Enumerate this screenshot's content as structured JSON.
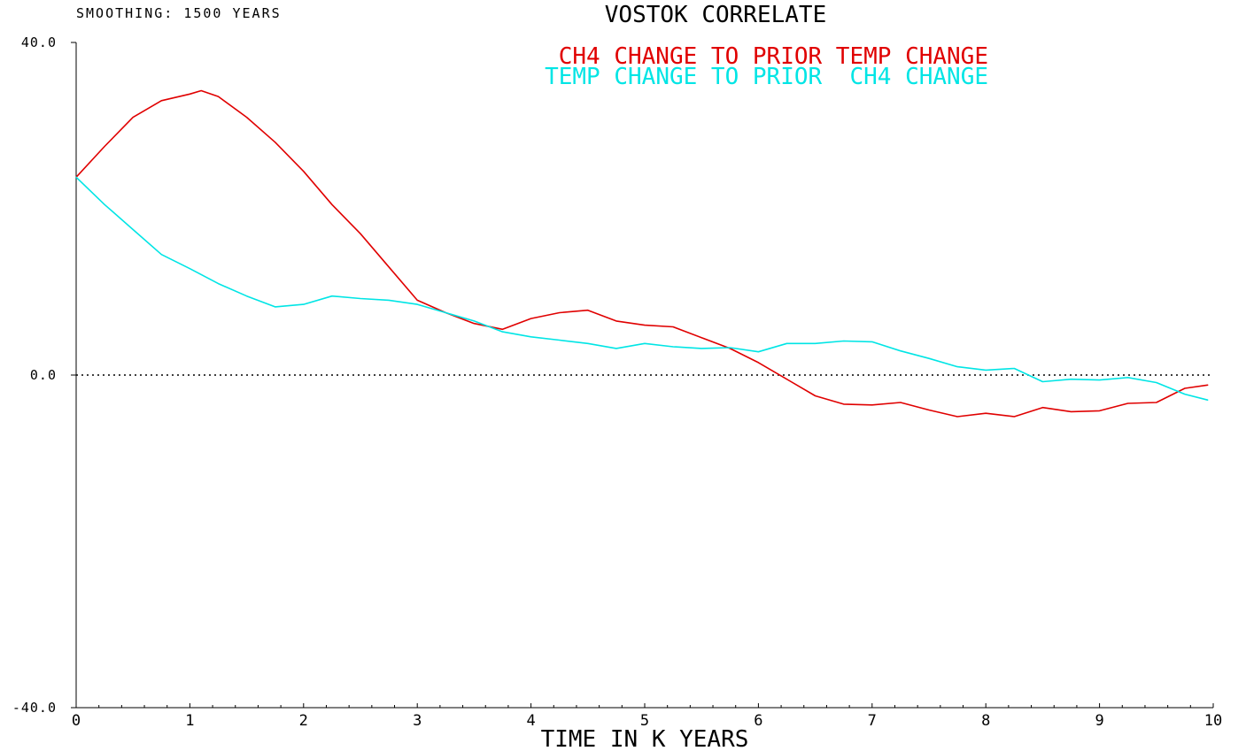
{
  "smoothing_label": "SMOOTHING: 1500 YEARS",
  "colors": {
    "background": "#ffffff",
    "axis": "#000000",
    "text": "#000000",
    "series_ch4_to_temp": "#e00000",
    "series_temp_to_ch4": "#00e5e5"
  },
  "chart_data": {
    "type": "line",
    "title": "VOSTOK CORRELATE",
    "xlabel": "TIME IN K YEARS",
    "ylabel": "",
    "xlim": [
      0,
      10
    ],
    "ylim": [
      -40,
      40
    ],
    "x_ticks": [
      "0",
      "1",
      "2",
      "3",
      "4",
      "5",
      "6",
      "7",
      "8",
      "9",
      "10"
    ],
    "y_ticks": [
      "-40.0",
      "0.0",
      "40.0"
    ],
    "zero_line": true,
    "grid": false,
    "legend_placement": "top-center",
    "series": [
      {
        "name": "CH4 CHANGE TO PRIOR TEMP CHANGE",
        "color": "#e00000",
        "points": [
          [
            0.0,
            23.8
          ],
          [
            0.25,
            27.5
          ],
          [
            0.5,
            31.0
          ],
          [
            0.75,
            33.0
          ],
          [
            1.0,
            33.8
          ],
          [
            1.1,
            34.2
          ],
          [
            1.25,
            33.5
          ],
          [
            1.5,
            31.0
          ],
          [
            1.75,
            28.0
          ],
          [
            2.0,
            24.5
          ],
          [
            2.25,
            20.5
          ],
          [
            2.5,
            17.0
          ],
          [
            2.75,
            13.0
          ],
          [
            3.0,
            9.0
          ],
          [
            3.25,
            7.5
          ],
          [
            3.5,
            6.2
          ],
          [
            3.75,
            5.5
          ],
          [
            4.0,
            6.8
          ],
          [
            4.25,
            7.5
          ],
          [
            4.5,
            7.8
          ],
          [
            4.75,
            6.5
          ],
          [
            5.0,
            6.0
          ],
          [
            5.25,
            5.8
          ],
          [
            5.5,
            4.5
          ],
          [
            5.75,
            3.2
          ],
          [
            6.0,
            1.5
          ],
          [
            6.25,
            -0.5
          ],
          [
            6.5,
            -2.5
          ],
          [
            6.75,
            -3.5
          ],
          [
            7.0,
            -3.6
          ],
          [
            7.25,
            -3.3
          ],
          [
            7.5,
            -4.2
          ],
          [
            7.75,
            -5.0
          ],
          [
            8.0,
            -4.6
          ],
          [
            8.25,
            -5.0
          ],
          [
            8.5,
            -3.9
          ],
          [
            8.75,
            -4.4
          ],
          [
            9.0,
            -4.3
          ],
          [
            9.25,
            -3.4
          ],
          [
            9.5,
            -3.3
          ],
          [
            9.75,
            -1.6
          ],
          [
            9.95,
            -1.2
          ]
        ]
      },
      {
        "name": "TEMP CHANGE TO PRIOR  CH4 CHANGE",
        "color": "#00e5e5",
        "points": [
          [
            0.0,
            23.8
          ],
          [
            0.25,
            20.5
          ],
          [
            0.5,
            17.5
          ],
          [
            0.75,
            14.5
          ],
          [
            1.0,
            12.8
          ],
          [
            1.25,
            11.0
          ],
          [
            1.5,
            9.5
          ],
          [
            1.75,
            8.2
          ],
          [
            2.0,
            8.5
          ],
          [
            2.25,
            9.5
          ],
          [
            2.5,
            9.2
          ],
          [
            2.75,
            9.0
          ],
          [
            3.0,
            8.5
          ],
          [
            3.25,
            7.5
          ],
          [
            3.5,
            6.5
          ],
          [
            3.75,
            5.2
          ],
          [
            4.0,
            4.6
          ],
          [
            4.25,
            4.2
          ],
          [
            4.5,
            3.8
          ],
          [
            4.75,
            3.2
          ],
          [
            5.0,
            3.8
          ],
          [
            5.25,
            3.4
          ],
          [
            5.5,
            3.2
          ],
          [
            5.75,
            3.3
          ],
          [
            6.0,
            2.8
          ],
          [
            6.25,
            3.8
          ],
          [
            6.5,
            3.8
          ],
          [
            6.75,
            4.1
          ],
          [
            7.0,
            4.0
          ],
          [
            7.25,
            2.9
          ],
          [
            7.5,
            2.0
          ],
          [
            7.75,
            1.0
          ],
          [
            8.0,
            0.6
          ],
          [
            8.25,
            0.8
          ],
          [
            8.5,
            -0.8
          ],
          [
            8.75,
            -0.5
          ],
          [
            9.0,
            -0.6
          ],
          [
            9.25,
            -0.3
          ],
          [
            9.5,
            -0.9
          ],
          [
            9.75,
            -2.3
          ],
          [
            9.95,
            -3.0
          ]
        ]
      }
    ]
  }
}
